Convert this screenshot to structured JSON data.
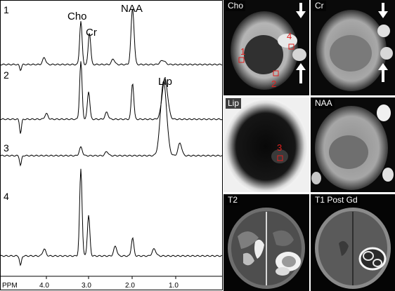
{
  "spectra_panel": {
    "spectrum_numbers": [
      "1",
      "2",
      "3",
      "4"
    ],
    "peak_labels": [
      "Cho",
      "Cr",
      "NAA",
      "Lip"
    ],
    "axis_unit_label": "PPM",
    "axis_ticks": [
      "4.0",
      "3.0",
      "2.0",
      "1.0"
    ]
  },
  "map_tiles": [
    {
      "label": "Cho",
      "markers": [
        "1",
        "2",
        "4"
      ],
      "arrows": 2
    },
    {
      "label": "Cr",
      "markers": [],
      "arrows": 2
    },
    {
      "label": "Lip",
      "markers": [
        "3"
      ],
      "arrows": 0
    },
    {
      "label": "NAA",
      "markers": [],
      "arrows": 0
    },
    {
      "label": "T2",
      "markers": [],
      "arrows": 0
    },
    {
      "label": "T1 Post Gd",
      "markers": [],
      "arrows": 0
    }
  ],
  "colors": {
    "marker_red": "#e0201e",
    "line": "#000000",
    "arrow": "#ffffff"
  }
}
